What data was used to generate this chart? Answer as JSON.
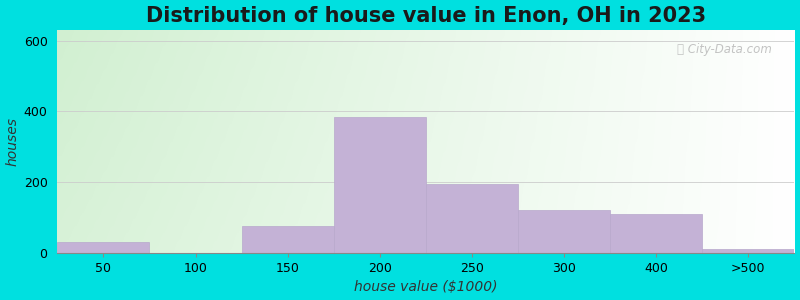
{
  "title": "Distribution of house value in Enon, OH in 2023",
  "xlabel": "house value ($1000)",
  "ylabel": "houses",
  "tick_labels": [
    "50",
    "100",
    "150",
    "200",
    "250",
    "300",
    "400",
    ">500"
  ],
  "bar_heights": [
    30,
    0,
    75,
    385,
    195,
    120,
    110,
    10
  ],
  "bar_color": "#c4b2d6",
  "bar_edge_color": "#b8a8cc",
  "yticks": [
    0,
    200,
    400,
    600
  ],
  "ylim": [
    0,
    630
  ],
  "xlim_left": 0,
  "xlim_right": 8,
  "background_outer": "#00e0e0",
  "title_fontsize": 15,
  "axis_label_fontsize": 10,
  "tick_fontsize": 9,
  "watermark_text": "City-Data.com",
  "watermark_color": "#b0b0b0"
}
